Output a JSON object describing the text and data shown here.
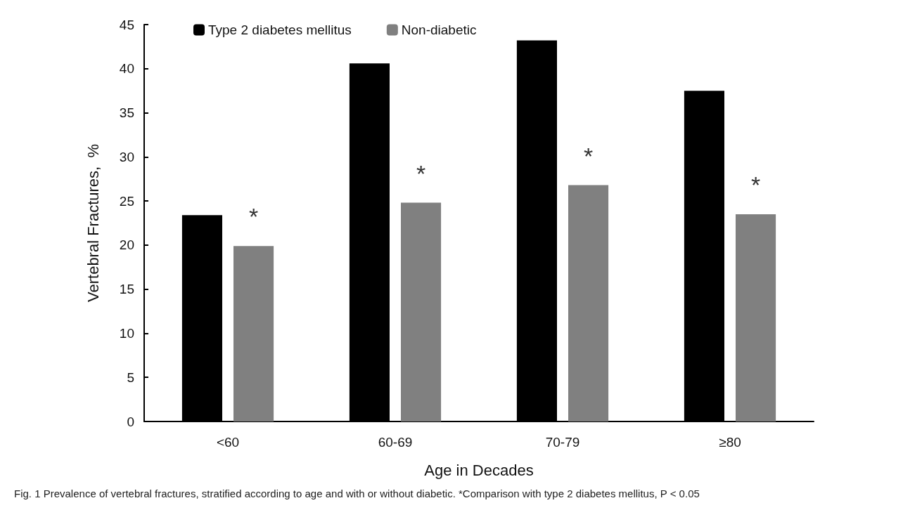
{
  "chart_data": {
    "type": "bar",
    "categories": [
      "<60",
      "60-69",
      "70-79",
      "≥80"
    ],
    "series": [
      {
        "name": "Type 2 diabetes mellitus",
        "color": "#000000",
        "values": [
          23.4,
          40.6,
          43.2,
          37.5
        ]
      },
      {
        "name": "Non-diabetic",
        "color": "#808080",
        "values": [
          19.9,
          24.8,
          26.8,
          23.5
        ]
      }
    ],
    "xlabel": "Age in Decades",
    "ylabel": "Vertebral Fractures,  %",
    "ylim": [
      0,
      45
    ],
    "yticks": [
      0,
      5,
      10,
      15,
      20,
      25,
      30,
      35,
      40,
      45
    ],
    "grid": false,
    "legend": "top left",
    "annotations": [
      "*",
      "*",
      "*",
      "*",
      "Fig. 1  Prevalence of vertebral fractures, stratified according to age and with or without diabetic. *Comparison with type 2 diabetes mellitus, P < 0.05"
    ]
  }
}
